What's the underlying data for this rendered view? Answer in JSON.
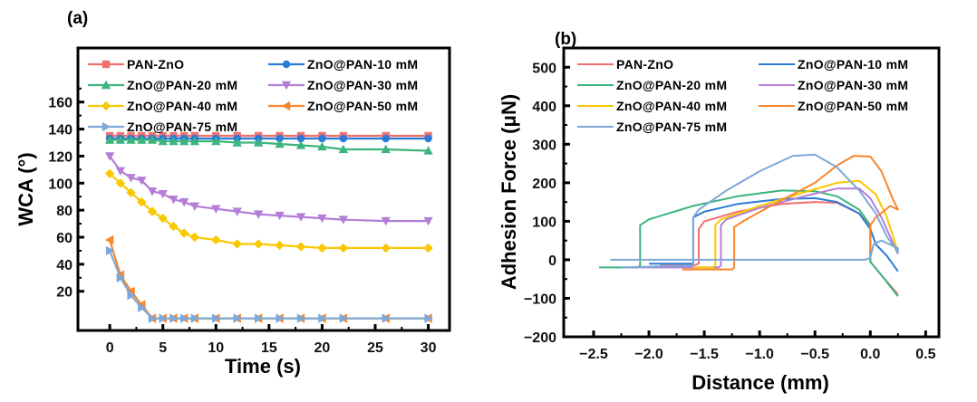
{
  "chart_data": [
    {
      "type": "line",
      "panel_label": "(a)",
      "title": "",
      "xlabel": "Time (s)",
      "ylabel": "WCA (°)",
      "xlim": [
        -3,
        32
      ],
      "ylim": [
        -9,
        200
      ],
      "xticks": [
        0,
        5,
        10,
        15,
        20,
        25,
        30
      ],
      "xtick_labels": [
        "0",
        "5",
        "10",
        "15",
        "20",
        "25",
        "30"
      ],
      "yticks": [
        20,
        40,
        60,
        80,
        100,
        120,
        140,
        160
      ],
      "ytick_labels": [
        "20",
        "40",
        "60",
        "80",
        "100",
        "120",
        "140",
        "160"
      ],
      "grid": false,
      "legend_position": "top",
      "x": [
        0,
        1,
        2,
        3,
        4,
        5,
        6,
        7,
        8,
        10,
        12,
        14,
        16,
        18,
        20,
        22,
        26,
        30
      ],
      "series": [
        {
          "name": "PAN-ZnO",
          "color": "#F0706E",
          "marker": "square",
          "values": [
            135,
            135,
            135,
            135,
            135,
            135,
            135,
            135,
            135,
            135,
            135,
            135,
            135,
            135,
            135,
            135,
            135,
            135
          ]
        },
        {
          "name": "ZnO@PAN-10 mM",
          "color": "#2A7BD8",
          "marker": "circle",
          "values": [
            133,
            133,
            133,
            133,
            133,
            133,
            133,
            133,
            133,
            133,
            133,
            133,
            133,
            133,
            133,
            133,
            133,
            133
          ]
        },
        {
          "name": "ZnO@PAN-20 mM",
          "color": "#3CB47E",
          "marker": "triangle-up",
          "values": [
            132,
            132,
            132,
            132,
            132,
            131,
            131,
            131,
            131,
            131,
            130,
            130,
            129,
            128,
            127,
            125,
            125,
            124
          ]
        },
        {
          "name": "ZnO@PAN-30 mM",
          "color": "#B47ED8",
          "marker": "triangle-down",
          "values": [
            120,
            109,
            104,
            102,
            94,
            92,
            88,
            86,
            83,
            81,
            79,
            77,
            76,
            75,
            74,
            73,
            72,
            72
          ]
        },
        {
          "name": "ZnO@PAN-40 mM",
          "color": "#F8C800",
          "marker": "diamond",
          "values": [
            107,
            100,
            93,
            86,
            79,
            74,
            68,
            63,
            60,
            58,
            55,
            55,
            54,
            53,
            52,
            52,
            52,
            52
          ]
        },
        {
          "name": "ZnO@PAN-50 mM",
          "color": "#F8862C",
          "marker": "triangle-left",
          "values": [
            58,
            32,
            20,
            10,
            0,
            0,
            0,
            0,
            0,
            0,
            0,
            0,
            0,
            0,
            0,
            0,
            0,
            0
          ]
        },
        {
          "name": "ZnO@PAN-75 mM",
          "color": "#7EA8D8",
          "marker": "triangle-right",
          "values": [
            50,
            30,
            17,
            8,
            0,
            0,
            0,
            0,
            0,
            0,
            0,
            0,
            0,
            0,
            0,
            0,
            0,
            0
          ]
        }
      ]
    },
    {
      "type": "line",
      "panel_label": "(b)",
      "title": "",
      "xlabel": "Distance (mm)",
      "ylabel": "Adhesion Force (μN)",
      "xlim": [
        -2.77,
        0.62
      ],
      "ylim": [
        -200,
        550
      ],
      "xticks": [
        -2.5,
        -2.0,
        -1.5,
        -1.0,
        -0.5,
        0.0,
        0.5
      ],
      "xtick_labels": [
        "−2.5",
        "−2.0",
        "−1.5",
        "−1.0",
        "−0.5",
        "0.0",
        "0.5"
      ],
      "yticks": [
        -200,
        -100,
        0,
        100,
        200,
        300,
        400,
        500
      ],
      "ytick_labels": [
        "−200",
        "−100",
        "0",
        "100",
        "200",
        "300",
        "400",
        "500"
      ],
      "grid": false,
      "legend_position": "top",
      "series": [
        {
          "name": "PAN-ZnO",
          "color": "#F0706E",
          "points": [
            [
              -1.9,
              -15
            ],
            [
              -1.6,
              -15
            ],
            [
              -1.55,
              -10
            ],
            [
              -1.55,
              80
            ],
            [
              -1.5,
              100
            ],
            [
              -1.2,
              125
            ],
            [
              -0.8,
              145
            ],
            [
              -0.5,
              150
            ],
            [
              -0.3,
              148
            ],
            [
              -0.1,
              120
            ],
            [
              0.0,
              85
            ],
            [
              0.0,
              -5
            ],
            [
              0.1,
              -40
            ],
            [
              0.25,
              -90
            ]
          ]
        },
        {
          "name": "ZnO@PAN-10 mM",
          "color": "#2A7BD8",
          "points": [
            [
              -2.0,
              -10
            ],
            [
              -1.6,
              -10
            ],
            [
              -1.6,
              110
            ],
            [
              -1.5,
              125
            ],
            [
              -1.2,
              145
            ],
            [
              -0.8,
              158
            ],
            [
              -0.5,
              160
            ],
            [
              -0.3,
              150
            ],
            [
              -0.1,
              120
            ],
            [
              0.0,
              80
            ],
            [
              0.05,
              40
            ],
            [
              0.15,
              10
            ],
            [
              0.25,
              -30
            ]
          ]
        },
        {
          "name": "ZnO@PAN-20 mM",
          "color": "#3CB47E",
          "points": [
            [
              -2.45,
              -20
            ],
            [
              -2.1,
              -20
            ],
            [
              -2.08,
              -15
            ],
            [
              -2.08,
              90
            ],
            [
              -2.0,
              105
            ],
            [
              -1.6,
              140
            ],
            [
              -1.2,
              165
            ],
            [
              -0.8,
              180
            ],
            [
              -0.5,
              178
            ],
            [
              -0.3,
              165
            ],
            [
              -0.1,
              130
            ],
            [
              0.0,
              90
            ],
            [
              0.0,
              -5
            ],
            [
              0.1,
              -40
            ],
            [
              0.25,
              -95
            ]
          ]
        },
        {
          "name": "ZnO@PAN-30 mM",
          "color": "#B47ED8",
          "points": [
            [
              -2.2,
              -20
            ],
            [
              -1.37,
              -20
            ],
            [
              -1.35,
              -15
            ],
            [
              -1.35,
              90
            ],
            [
              -1.3,
              105
            ],
            [
              -1.0,
              135
            ],
            [
              -0.6,
              165
            ],
            [
              -0.3,
              185
            ],
            [
              -0.1,
              185
            ],
            [
              0.0,
              160
            ],
            [
              0.1,
              110
            ],
            [
              0.25,
              15
            ]
          ]
        },
        {
          "name": "ZnO@PAN-40 mM",
          "color": "#F8C800",
          "points": [
            [
              -1.6,
              -20
            ],
            [
              -1.42,
              -20
            ],
            [
              -1.4,
              -15
            ],
            [
              -1.4,
              90
            ],
            [
              -1.35,
              105
            ],
            [
              -1.0,
              140
            ],
            [
              -0.6,
              175
            ],
            [
              -0.3,
              200
            ],
            [
              -0.1,
              205
            ],
            [
              0.05,
              170
            ],
            [
              0.15,
              110
            ],
            [
              0.25,
              20
            ]
          ]
        },
        {
          "name": "ZnO@PAN-50 mM",
          "color": "#F8862C",
          "points": [
            [
              -1.7,
              -25
            ],
            [
              -1.25,
              -25
            ],
            [
              -1.23,
              -20
            ],
            [
              -1.23,
              85
            ],
            [
              -1.15,
              100
            ],
            [
              -0.9,
              140
            ],
            [
              -0.5,
              200
            ],
            [
              -0.3,
              245
            ],
            [
              -0.15,
              270
            ],
            [
              0.0,
              268
            ],
            [
              0.1,
              230
            ],
            [
              0.2,
              160
            ],
            [
              0.25,
              130
            ],
            [
              0.18,
              140
            ],
            [
              0.05,
              110
            ],
            [
              0.0,
              90
            ],
            [
              0.0,
              20
            ]
          ]
        },
        {
          "name": "ZnO@PAN-75 mM",
          "color": "#7EA8D8",
          "points": [
            [
              -2.35,
              0
            ],
            [
              -0.05,
              0
            ],
            [
              0.0,
              5
            ],
            [
              0.03,
              40
            ],
            [
              0.1,
              50
            ],
            [
              0.25,
              30
            ],
            [
              0.25,
              20
            ],
            [
              0.15,
              60
            ],
            [
              0.05,
              120
            ],
            [
              -0.1,
              180
            ],
            [
              -0.3,
              240
            ],
            [
              -0.5,
              273
            ],
            [
              -0.7,
              270
            ],
            [
              -1.0,
              230
            ],
            [
              -1.3,
              180
            ],
            [
              -1.55,
              130
            ],
            [
              -1.6,
              110
            ],
            [
              -1.6,
              -15
            ],
            [
              -2.25,
              -20
            ]
          ]
        }
      ]
    }
  ]
}
